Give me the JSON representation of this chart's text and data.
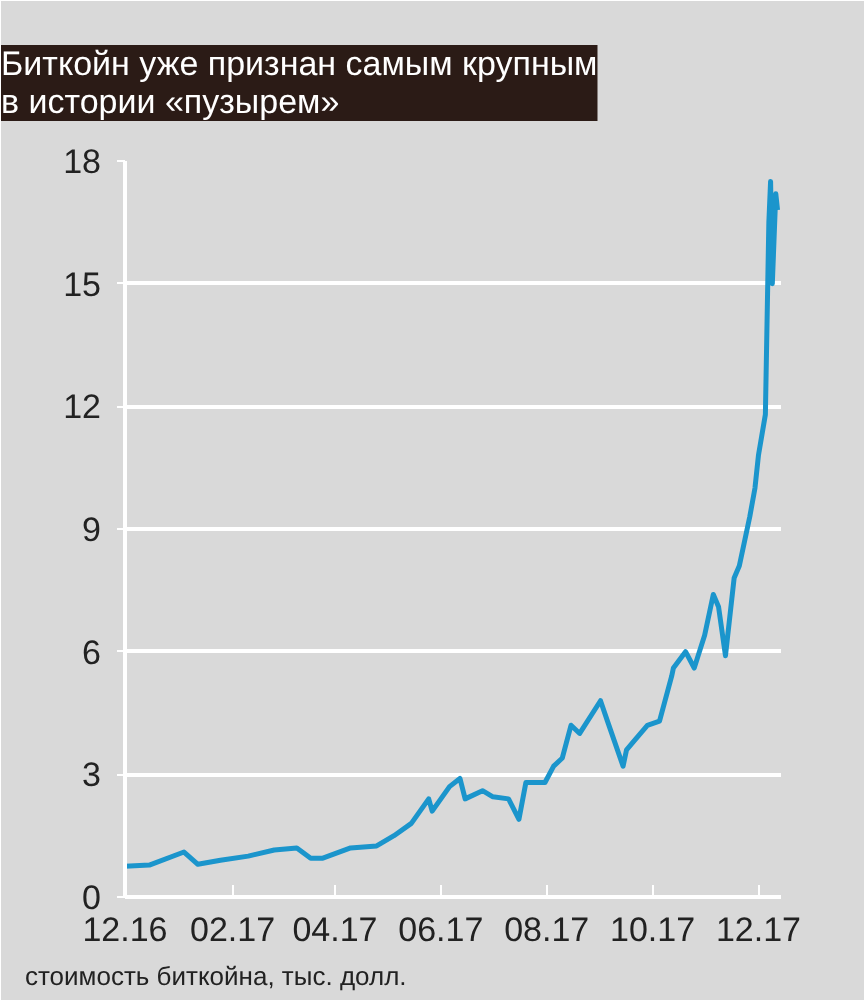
{
  "chart_data": {
    "type": "line",
    "title": "Биткойн уже признан самым крупным\nв истории «пузырем»",
    "xlabel": "стоимость биткойна, тыс. долл.",
    "x": [
      "2016-12-01",
      "2016-12-15",
      "2017-01-04",
      "2017-01-12",
      "2017-01-25",
      "2017-02-10",
      "2017-02-25",
      "2017-03-10",
      "2017-03-18",
      "2017-03-25",
      "2017-04-10",
      "2017-04-25",
      "2017-05-05",
      "2017-05-15",
      "2017-05-25",
      "2017-05-27",
      "2017-06-06",
      "2017-06-12",
      "2017-06-15",
      "2017-06-25",
      "2017-07-01",
      "2017-07-10",
      "2017-07-16",
      "2017-07-20",
      "2017-07-31",
      "2017-08-05",
      "2017-08-10",
      "2017-08-15",
      "2017-08-20",
      "2017-09-01",
      "2017-09-05",
      "2017-09-14",
      "2017-09-16",
      "2017-09-20",
      "2017-09-28",
      "2017-10-05",
      "2017-10-12",
      "2017-10-13",
      "2017-10-20",
      "2017-10-25",
      "2017-10-31",
      "2017-11-05",
      "2017-11-08",
      "2017-11-12",
      "2017-11-17",
      "2017-11-20",
      "2017-11-26",
      "2017-11-29",
      "2017-12-01",
      "2017-12-05",
      "2017-12-07",
      "2017-12-08",
      "2017-12-09",
      "2017-12-11",
      "2017-12-12"
    ],
    "series": [
      {
        "color": "#1b95cc",
        "values": [
          0.75,
          0.78,
          1.1,
          0.8,
          0.9,
          1.0,
          1.15,
          1.2,
          0.95,
          0.95,
          1.2,
          1.25,
          1.5,
          1.8,
          2.4,
          2.1,
          2.7,
          2.9,
          2.4,
          2.6,
          2.45,
          2.4,
          1.9,
          2.8,
          2.8,
          3.2,
          3.4,
          4.2,
          4.0,
          4.8,
          4.3,
          3.2,
          3.6,
          3.8,
          4.2,
          4.3,
          5.4,
          5.6,
          6.0,
          5.6,
          6.4,
          7.4,
          7.1,
          5.9,
          7.8,
          8.1,
          9.3,
          10.0,
          10.8,
          11.8,
          16.5,
          17.5,
          15.0,
          17.2,
          16.8
        ]
      }
    ],
    "xlim": [
      "2016-12-01",
      "2017-12-14"
    ],
    "xticks": [
      {
        "value": "2016-12-01",
        "label": "12.16"
      },
      {
        "value": "2017-02-01",
        "label": "02.17"
      },
      {
        "value": "2017-04-01",
        "label": "04.17"
      },
      {
        "value": "2017-06-01",
        "label": "06.17"
      },
      {
        "value": "2017-08-01",
        "label": "08.17"
      },
      {
        "value": "2017-10-01",
        "label": "10.17"
      },
      {
        "value": "2017-12-01",
        "label": "12.17"
      }
    ],
    "ylim": [
      0,
      18
    ],
    "yticks": [
      0,
      3,
      6,
      9,
      12,
      15,
      18
    ],
    "grid": "y"
  }
}
